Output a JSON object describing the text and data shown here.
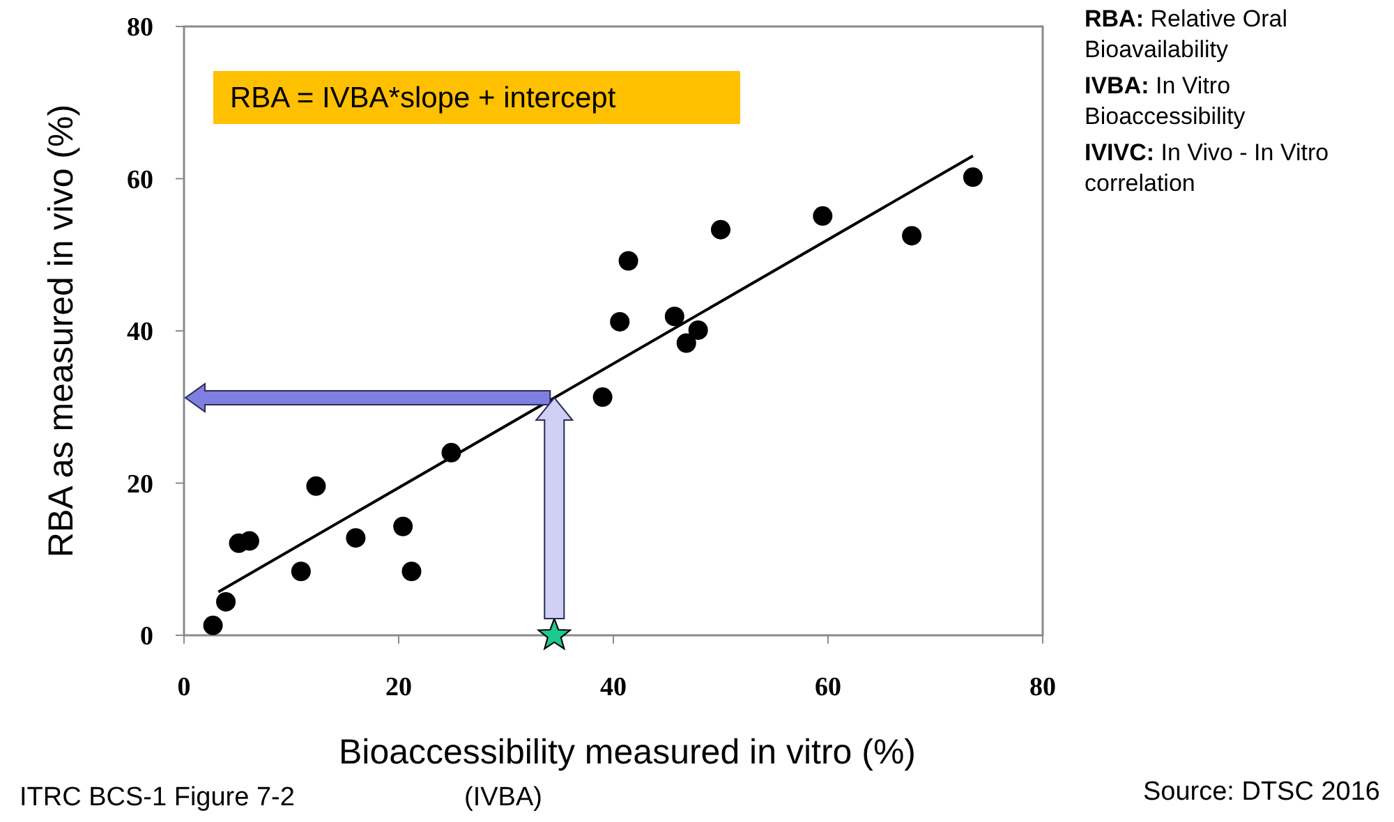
{
  "chart_data": {
    "type": "scatter",
    "xlabel": "Bioaccessibility measured in vitro (%)",
    "ylabel": "RBA as measured in vivo (%)",
    "xlim": [
      0,
      80
    ],
    "ylim": [
      0,
      80
    ],
    "xticks": [
      0,
      20,
      40,
      60,
      80
    ],
    "yticks": [
      0,
      20,
      40,
      60,
      80
    ],
    "grid": false,
    "series": [
      {
        "color": "#000000",
        "marker": "circle",
        "x": [
          2.7,
          3.9,
          5.1,
          6.1,
          10.9,
          12.3,
          16.0,
          20.4,
          21.2,
          24.9,
          39.0,
          40.6,
          41.4,
          45.7,
          46.8,
          47.9,
          50.0,
          59.5,
          67.8,
          73.5
        ],
        "values": [
          1.3,
          4.4,
          12.1,
          12.4,
          8.4,
          19.6,
          12.8,
          14.3,
          8.4,
          24.0,
          31.3,
          41.2,
          49.2,
          41.9,
          38.4,
          40.1,
          53.3,
          55.1,
          52.5,
          60.2
        ]
      },
      {
        "type": "line",
        "color": "#000000",
        "marker": "none",
        "x": [
          3.2,
          73.5
        ],
        "values": [
          5.7,
          63.0
        ]
      },
      {
        "color": "#1dc98f",
        "marker": "star",
        "x": [
          34.5
        ],
        "values": [
          0
        ]
      }
    ],
    "annotations": [
      "RBA = IVBA*slope + intercept",
      "RBA: Relative Oral Bioavailability",
      "IVBA: In Vitro Bioaccessibility",
      "IVIVC: In Vivo - In Vitro correlation",
      "ITRC BCS-1 Figure 7-2",
      "(IVBA)",
      "Source: DTSC 2016"
    ]
  }
}
